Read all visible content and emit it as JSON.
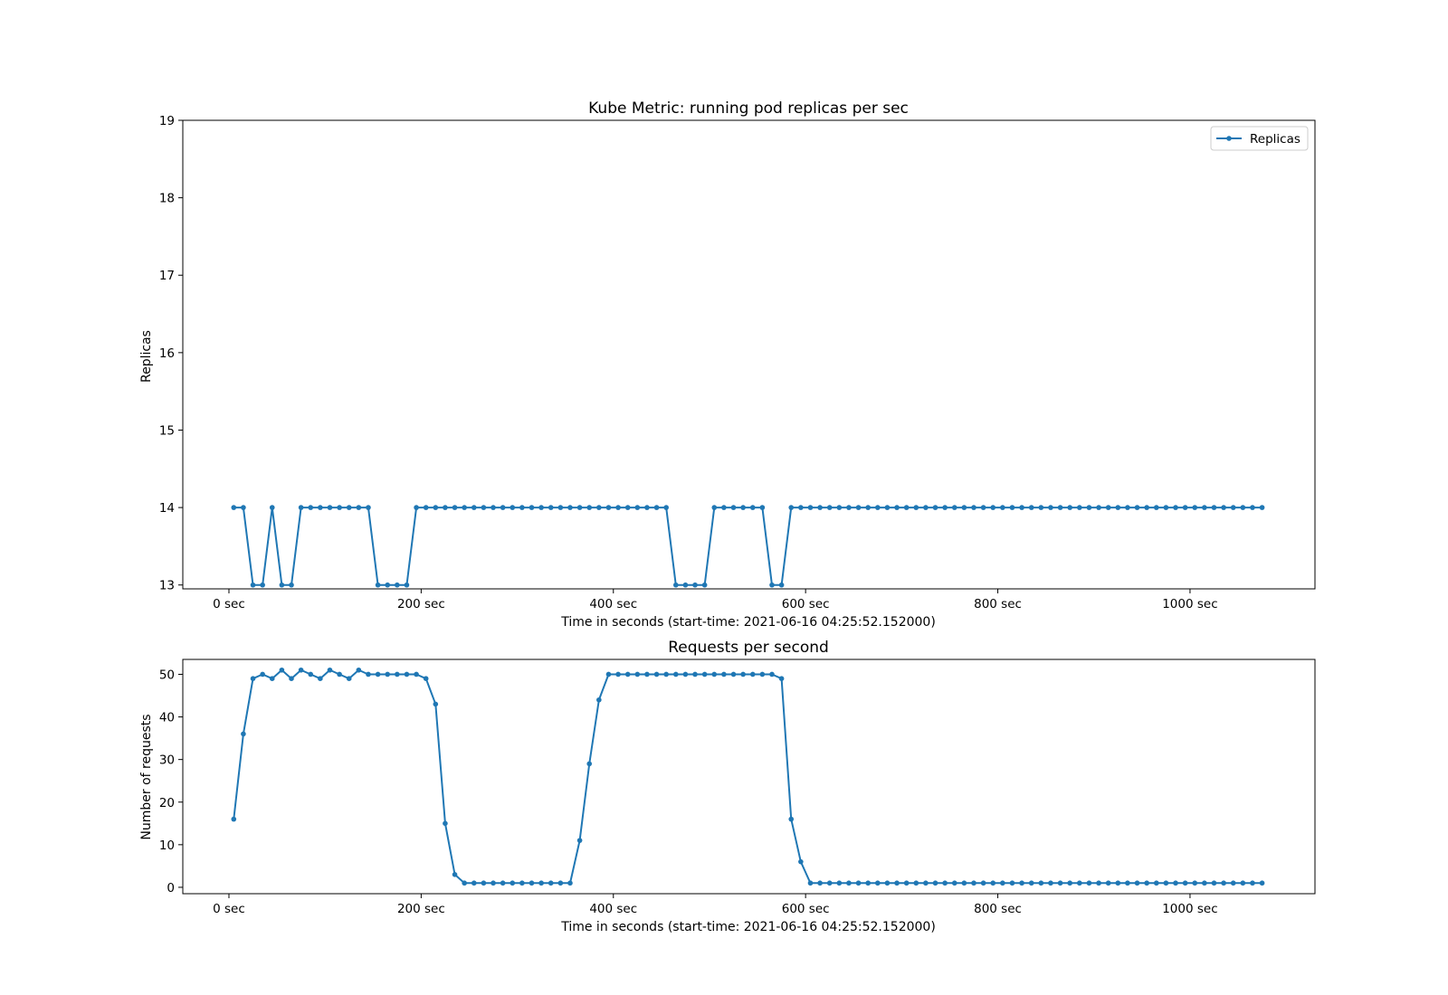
{
  "chart_data": [
    {
      "type": "line",
      "title": "Kube Metric: running pod replicas per sec",
      "xlabel": "Time in seconds (start-time: 2021-06-16 04:25:52.152000)",
      "ylabel": "Replicas",
      "xlim": [
        -48,
        1130
      ],
      "ylim": [
        12.95,
        19
      ],
      "xticks": [
        0,
        200,
        400,
        600,
        800,
        1000
      ],
      "xtick_labels": [
        "0 sec",
        "200 sec",
        "400 sec",
        "600 sec",
        "800 sec",
        "1000 sec"
      ],
      "yticks": [
        13,
        14,
        15,
        16,
        17,
        18,
        19
      ],
      "ytick_labels": [
        "13",
        "14",
        "15",
        "16",
        "17",
        "18",
        "19"
      ],
      "legend": {
        "placement": "top-right",
        "entries": [
          "Replicas"
        ]
      },
      "grid": false,
      "color": "#1f77b4",
      "series": [
        {
          "name": "Replicas",
          "x": [
            5,
            15,
            25,
            35,
            45,
            55,
            65,
            75,
            85,
            95,
            105,
            115,
            125,
            135,
            145,
            155,
            165,
            175,
            185,
            195,
            205,
            215,
            225,
            235,
            245,
            255,
            265,
            275,
            285,
            295,
            305,
            315,
            325,
            335,
            345,
            355,
            365,
            375,
            385,
            395,
            405,
            415,
            425,
            435,
            445,
            455,
            465,
            475,
            485,
            495,
            505,
            515,
            525,
            535,
            545,
            555,
            565,
            575,
            585,
            595,
            605,
            615,
            625,
            635,
            645,
            655,
            665,
            675,
            685,
            695,
            705,
            715,
            725,
            735,
            745,
            755,
            765,
            775,
            785,
            795,
            805,
            815,
            825,
            835,
            845,
            855,
            865,
            875,
            885,
            895,
            905,
            915,
            925,
            935,
            945,
            955,
            965,
            975,
            985,
            995,
            1005,
            1015,
            1025,
            1035,
            1045,
            1055,
            1065,
            1075
          ],
          "values": [
            14,
            14,
            13,
            13,
            14,
            13,
            13,
            14,
            14,
            14,
            14,
            14,
            14,
            14,
            14,
            13,
            13,
            13,
            13,
            14,
            14,
            14,
            14,
            14,
            14,
            14,
            14,
            14,
            14,
            14,
            14,
            14,
            14,
            14,
            14,
            14,
            14,
            14,
            14,
            14,
            14,
            14,
            14,
            14,
            14,
            14,
            13,
            13,
            13,
            13,
            14,
            14,
            14,
            14,
            14,
            14,
            13,
            13,
            14,
            14,
            14,
            14,
            14,
            14,
            14,
            14,
            14,
            14,
            14,
            14,
            14,
            14,
            14,
            14,
            14,
            14,
            14,
            14,
            14,
            14,
            14,
            14,
            14,
            14,
            14,
            14,
            14,
            14,
            14,
            14,
            14,
            14,
            14,
            14,
            14,
            14,
            14,
            14,
            14,
            14,
            14,
            14,
            14,
            14,
            14,
            14,
            14,
            14
          ]
        }
      ]
    },
    {
      "type": "line",
      "title": "Requests per second",
      "xlabel": "Time in seconds (start-time: 2021-06-16 04:25:52.152000)",
      "ylabel": "Number of requests",
      "xlim": [
        -48,
        1130
      ],
      "ylim": [
        -1.5,
        53.5
      ],
      "xticks": [
        0,
        200,
        400,
        600,
        800,
        1000
      ],
      "xtick_labels": [
        "0 sec",
        "200 sec",
        "400 sec",
        "600 sec",
        "800 sec",
        "1000 sec"
      ],
      "yticks": [
        0,
        10,
        20,
        30,
        40,
        50
      ],
      "ytick_labels": [
        "0",
        "10",
        "20",
        "30",
        "40",
        "50"
      ],
      "grid": false,
      "color": "#1f77b4",
      "series": [
        {
          "x": [
            5,
            15,
            25,
            35,
            45,
            55,
            65,
            75,
            85,
            95,
            105,
            115,
            125,
            135,
            145,
            155,
            165,
            175,
            185,
            195,
            205,
            215,
            225,
            235,
            245,
            255,
            265,
            275,
            285,
            295,
            305,
            315,
            325,
            335,
            345,
            355,
            365,
            375,
            385,
            395,
            405,
            415,
            425,
            435,
            445,
            455,
            465,
            475,
            485,
            495,
            505,
            515,
            525,
            535,
            545,
            555,
            565,
            575,
            585,
            595,
            605,
            615,
            625,
            635,
            645,
            655,
            665,
            675,
            685,
            695,
            705,
            715,
            725,
            735,
            745,
            755,
            765,
            775,
            785,
            795,
            805,
            815,
            825,
            835,
            845,
            855,
            865,
            875,
            885,
            895,
            905,
            915,
            925,
            935,
            945,
            955,
            965,
            975,
            985,
            995,
            1005,
            1015,
            1025,
            1035,
            1045,
            1055,
            1065,
            1075
          ],
          "values": [
            16,
            36,
            49,
            50,
            49,
            51,
            49,
            51,
            50,
            49,
            51,
            50,
            49,
            51,
            50,
            50,
            50,
            50,
            50,
            50,
            49,
            43,
            15,
            3,
            1,
            1,
            1,
            1,
            1,
            1,
            1,
            1,
            1,
            1,
            1,
            1,
            11,
            29,
            44,
            50,
            50,
            50,
            50,
            50,
            50,
            50,
            50,
            50,
            50,
            50,
            50,
            50,
            50,
            50,
            50,
            50,
            50,
            49,
            16,
            6,
            1,
            1,
            1,
            1,
            1,
            1,
            1,
            1,
            1,
            1,
            1,
            1,
            1,
            1,
            1,
            1,
            1,
            1,
            1,
            1,
            1,
            1,
            1,
            1,
            1,
            1,
            1,
            1,
            1,
            1,
            1,
            1,
            1,
            1,
            1,
            1,
            1,
            1,
            1,
            1,
            1,
            1,
            1,
            1,
            1,
            1,
            1,
            1
          ]
        }
      ]
    }
  ]
}
